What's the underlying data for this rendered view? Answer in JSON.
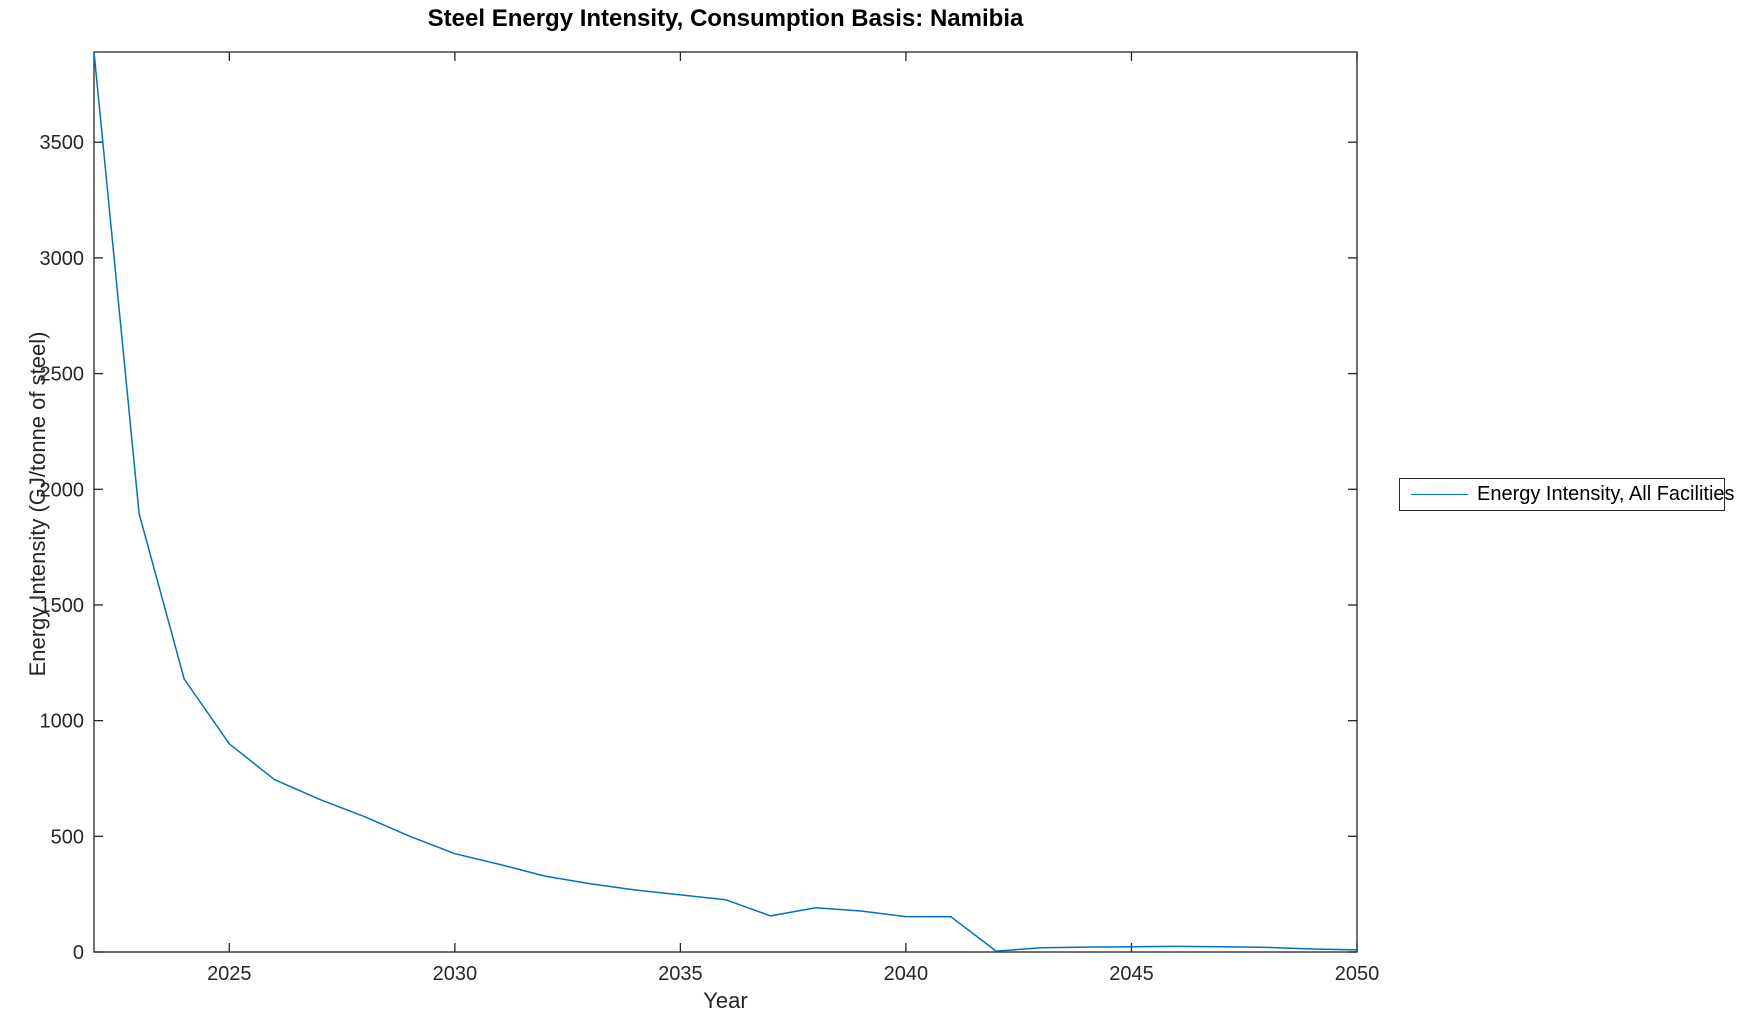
{
  "chart_data": {
    "type": "line",
    "title": "Steel Energy Intensity, Consumption Basis: Namibia",
    "xlabel": "Year",
    "ylabel": "Energy Intensity (GJ/tonne of steel)",
    "grid": false,
    "legend": {
      "position": "right-outside",
      "entries": [
        {
          "label": "Energy Intensity, All Facilities",
          "color": "#0072BD"
        }
      ]
    },
    "xlim": [
      2022,
      2050
    ],
    "ylim": [
      0,
      3890
    ],
    "x_ticks": [
      2025,
      2030,
      2035,
      2040,
      2045,
      2050
    ],
    "y_ticks": [
      0,
      500,
      1000,
      1500,
      2000,
      2500,
      3000,
      3500
    ],
    "axis_color": "#262626",
    "tick_label_color": "#262626",
    "series": [
      {
        "name": "Energy Intensity, All Facilities",
        "color": "#0072BD",
        "x": [
          2022,
          2023,
          2024,
          2025,
          2026,
          2027,
          2028,
          2029,
          2030,
          2031,
          2032,
          2033,
          2034,
          2035,
          2036,
          2037,
          2038,
          2039,
          2040,
          2041,
          2042,
          2043,
          2044,
          2045,
          2046,
          2047,
          2048,
          2049,
          2050
        ],
        "values": [
          3890,
          1895,
          1180,
          900,
          745,
          660,
          585,
          500,
          425,
          378,
          328,
          295,
          268,
          247,
          226,
          156,
          191,
          177,
          153,
          152,
          4,
          18,
          21,
          23,
          24,
          23,
          20,
          13,
          9
        ]
      }
    ]
  }
}
